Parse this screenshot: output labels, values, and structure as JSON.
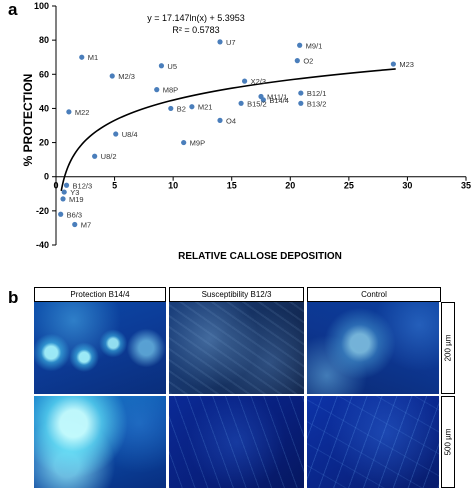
{
  "panel_a": {
    "letter": "a"
  },
  "panel_b": {
    "letter": "b",
    "columns": [
      "Protection B14/4",
      "Susceptibility B12/3",
      "Control"
    ],
    "scale_bars": [
      "200 µm",
      "500 µm"
    ]
  },
  "chart_data": {
    "type": "scatter",
    "xlabel": "RELATIVE CALLOSE DEPOSITION",
    "ylabel": "% PROTECTION",
    "xlim": [
      0,
      35
    ],
    "ylim": [
      -40,
      100
    ],
    "xticks": [
      0,
      5,
      10,
      15,
      20,
      25,
      30,
      35
    ],
    "yticks": [
      -40,
      -20,
      0,
      20,
      40,
      60,
      80,
      100
    ],
    "grid": false,
    "equation": "y = 17.147ln(x) + 5.3953",
    "r_squared": "R² = 0.5783",
    "trendline": {
      "type": "logarithmic",
      "a": 17.147,
      "b": 5.3953,
      "x_range": [
        0.45,
        29
      ]
    },
    "marker_color": "#4a7ebb",
    "line_color": "#000000",
    "points": [
      {
        "label": "M1",
        "x": 2.2,
        "y": 70
      },
      {
        "label": "U7",
        "x": 14.0,
        "y": 79
      },
      {
        "label": "M9/1",
        "x": 20.8,
        "y": 77
      },
      {
        "label": "O2",
        "x": 20.6,
        "y": 68
      },
      {
        "label": "M23",
        "x": 28.8,
        "y": 66
      },
      {
        "label": "U5",
        "x": 9.0,
        "y": 65
      },
      {
        "label": "M2/3",
        "x": 4.8,
        "y": 59
      },
      {
        "label": "X2/3",
        "x": 16.1,
        "y": 56
      },
      {
        "label": "M8P",
        "x": 8.6,
        "y": 51
      },
      {
        "label": "B12/1",
        "x": 20.9,
        "y": 49
      },
      {
        "label": "M11/1",
        "x": 17.5,
        "y": 47
      },
      {
        "label": "B14/4",
        "x": 17.7,
        "y": 45
      },
      {
        "label": "B15/2",
        "x": 15.8,
        "y": 43
      },
      {
        "label": "B13/2",
        "x": 20.9,
        "y": 43
      },
      {
        "label": "M21",
        "x": 11.6,
        "y": 41
      },
      {
        "label": "B2",
        "x": 9.8,
        "y": 40
      },
      {
        "label": "M22",
        "x": 1.1,
        "y": 38
      },
      {
        "label": "O4",
        "x": 14.0,
        "y": 33
      },
      {
        "label": "U8/4",
        "x": 5.1,
        "y": 25
      },
      {
        "label": "M9P",
        "x": 10.9,
        "y": 20
      },
      {
        "label": "U8/2",
        "x": 3.3,
        "y": 12
      },
      {
        "label": "B12/3",
        "x": 0.9,
        "y": -5
      },
      {
        "label": "Y3",
        "x": 0.7,
        "y": -9
      },
      {
        "label": "M19",
        "x": 0.6,
        "y": -13
      },
      {
        "label": "B6/3",
        "x": 0.4,
        "y": -22
      },
      {
        "label": "M7",
        "x": 1.6,
        "y": -28
      }
    ]
  }
}
